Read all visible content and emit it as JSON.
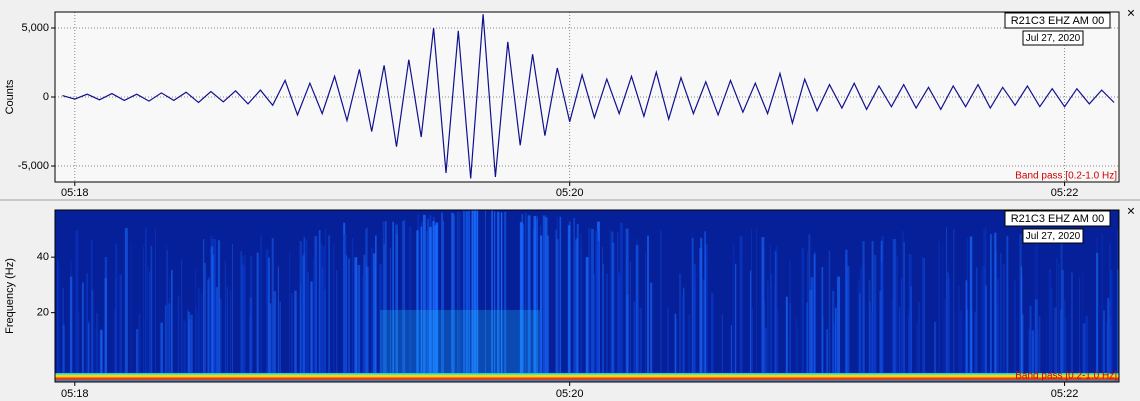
{
  "chart_data": [
    {
      "type": "line",
      "ylabel": "Counts",
      "station": "R21C3 EHZ AM 00",
      "date": "Jul 27, 2020",
      "filter": "Band pass [0.2-1.0 Hz]",
      "close": "×",
      "color": "#10108f",
      "grid": true,
      "xlim": [
        317.92,
        322.22
      ],
      "xticks": [
        {
          "value": 318,
          "label": "05:18"
        },
        {
          "value": 320,
          "label": "05:20"
        },
        {
          "value": 322,
          "label": "05:22"
        }
      ],
      "ylim": [
        -6160,
        6160
      ],
      "yticks": [
        {
          "value": 5000,
          "label": "5,000"
        },
        0,
        {
          "value": -5000,
          "label": "-5,000"
        }
      ],
      "x": [
        317.95,
        318.0,
        318.05,
        318.1,
        318.15,
        318.2,
        318.25,
        318.3,
        318.35,
        318.4,
        318.45,
        318.5,
        318.55,
        318.6,
        318.65,
        318.7,
        318.75,
        318.8,
        318.85,
        318.9,
        318.95,
        319.0,
        319.05,
        319.1,
        319.15,
        319.2,
        319.25,
        319.3,
        319.35,
        319.4,
        319.45,
        319.5,
        319.55,
        319.6,
        319.65,
        319.7,
        319.75,
        319.8,
        319.85,
        319.9,
        319.95,
        320.0,
        320.05,
        320.1,
        320.15,
        320.2,
        320.25,
        320.3,
        320.35,
        320.4,
        320.45,
        320.5,
        320.55,
        320.6,
        320.65,
        320.7,
        320.75,
        320.8,
        320.85,
        320.9,
        320.95,
        321.0,
        321.05,
        321.1,
        321.15,
        321.2,
        321.25,
        321.3,
        321.35,
        321.4,
        321.45,
        321.5,
        321.55,
        321.6,
        321.65,
        321.7,
        321.75,
        321.8,
        321.85,
        321.9,
        321.95,
        322.0,
        322.05,
        322.1,
        322.15,
        322.2
      ],
      "values": [
        100,
        -150,
        200,
        -200,
        250,
        -250,
        200,
        -300,
        300,
        -250,
        350,
        -400,
        400,
        -350,
        450,
        -500,
        500,
        -600,
        1200,
        -1300,
        1000,
        -1200,
        1500,
        -1700,
        2000,
        -2500,
        2300,
        -3600,
        2700,
        -2900,
        5000,
        -5500,
        4800,
        -5900,
        6000,
        -5800,
        4000,
        -3500,
        3100,
        -2800,
        2100,
        -1800,
        1600,
        -1500,
        1300,
        -1200,
        1500,
        -1400,
        1800,
        -1600,
        1400,
        -1200,
        1100,
        -1300,
        1200,
        -1100,
        1000,
        -1200,
        1700,
        -1900,
        1300,
        -1000,
        900,
        -800,
        1000,
        -900,
        800,
        -700,
        900,
        -800,
        700,
        -900,
        800,
        -700,
        900,
        -800,
        700,
        -600,
        800,
        -700,
        600,
        -700,
        600,
        -500,
        500,
        -400
      ]
    },
    {
      "type": "spectrogram",
      "ylabel": "Frequency (Hz)",
      "station": "R21C3 EHZ AM 00",
      "date": "Jul 27, 2020",
      "filter": "Band pass [0.2-1.0 Hz]",
      "close": "×",
      "grid": false,
      "xlim": [
        317.92,
        322.22
      ],
      "xticks": [
        {
          "value": 318,
          "label": "05:18"
        },
        {
          "value": 320,
          "label": "05:20"
        },
        {
          "value": 322,
          "label": "05:22"
        }
      ],
      "ylim": [
        -5,
        57
      ],
      "yticks": [
        20,
        40
      ]
    }
  ]
}
